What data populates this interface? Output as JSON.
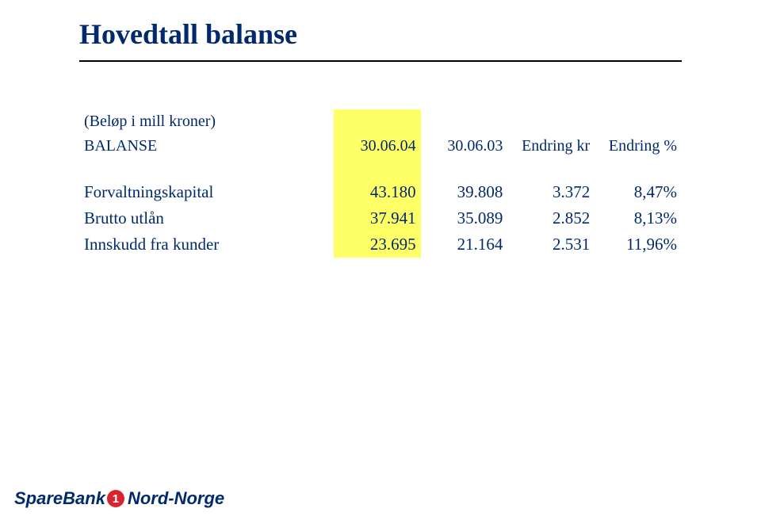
{
  "title": "Hovedtall balanse",
  "header": {
    "note": "(Beløp i mill kroner)",
    "section": "BALANSE",
    "columns": [
      "30.06.04",
      "30.06.03",
      "Endring kr",
      "Endring %"
    ]
  },
  "rows": [
    {
      "label": "Forvaltningskapital",
      "c1": "43.180",
      "c2": "39.808",
      "c3": "3.372",
      "c4": "8,47%"
    },
    {
      "label": "Brutto utlån",
      "c1": "37.941",
      "c2": "35.089",
      "c3": "2.852",
      "c4": "8,13%"
    },
    {
      "label": "Innskudd fra kunder",
      "c1": "23.695",
      "c2": "21.164",
      "c3": "2.531",
      "c4": "11,96%"
    }
  ],
  "logo": {
    "left": "SpareBank",
    "badge": "1",
    "right": "Nord-Norge"
  },
  "colors": {
    "text": "#002a6c",
    "highlight": "#ffff66",
    "rule": "#000000",
    "badge": "#d9232e",
    "background": "#ffffff"
  }
}
